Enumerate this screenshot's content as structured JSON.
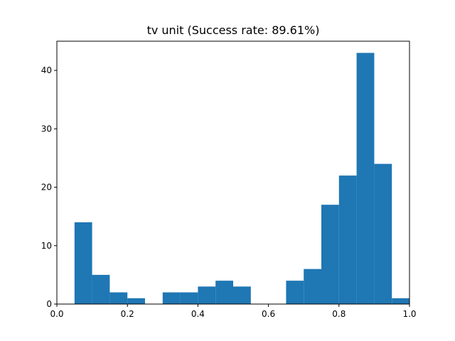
{
  "chart_data": {
    "type": "bar",
    "title": "tv unit (Success rate: 89.61%)",
    "xlabel": "",
    "ylabel": "",
    "xlim": [
      0.0,
      1.0
    ],
    "ylim": [
      0,
      45
    ],
    "bin_width": 0.05,
    "bins": [
      {
        "start": 0.05,
        "count": 14
      },
      {
        "start": 0.1,
        "count": 5
      },
      {
        "start": 0.15,
        "count": 2
      },
      {
        "start": 0.2,
        "count": 1
      },
      {
        "start": 0.3,
        "count": 2
      },
      {
        "start": 0.35,
        "count": 2
      },
      {
        "start": 0.4,
        "count": 3
      },
      {
        "start": 0.45,
        "count": 4
      },
      {
        "start": 0.5,
        "count": 3
      },
      {
        "start": 0.65,
        "count": 4
      },
      {
        "start": 0.7,
        "count": 6
      },
      {
        "start": 0.75,
        "count": 17
      },
      {
        "start": 0.8,
        "count": 22
      },
      {
        "start": 0.85,
        "count": 43
      },
      {
        "start": 0.9,
        "count": 24
      },
      {
        "start": 0.95,
        "count": 1
      }
    ],
    "x_ticks": [
      {
        "value": 0.0,
        "label": "0.0"
      },
      {
        "value": 0.2,
        "label": "0.2"
      },
      {
        "value": 0.4,
        "label": "0.4"
      },
      {
        "value": 0.6,
        "label": "0.6"
      },
      {
        "value": 0.8,
        "label": "0.8"
      },
      {
        "value": 1.0,
        "label": "1.0"
      }
    ],
    "y_ticks": [
      {
        "value": 0,
        "label": "0"
      },
      {
        "value": 10,
        "label": "10"
      },
      {
        "value": 20,
        "label": "20"
      },
      {
        "value": 30,
        "label": "30"
      },
      {
        "value": 40,
        "label": "40"
      }
    ],
    "bar_color": "#1f77b4",
    "grid": false,
    "legend": "none"
  }
}
